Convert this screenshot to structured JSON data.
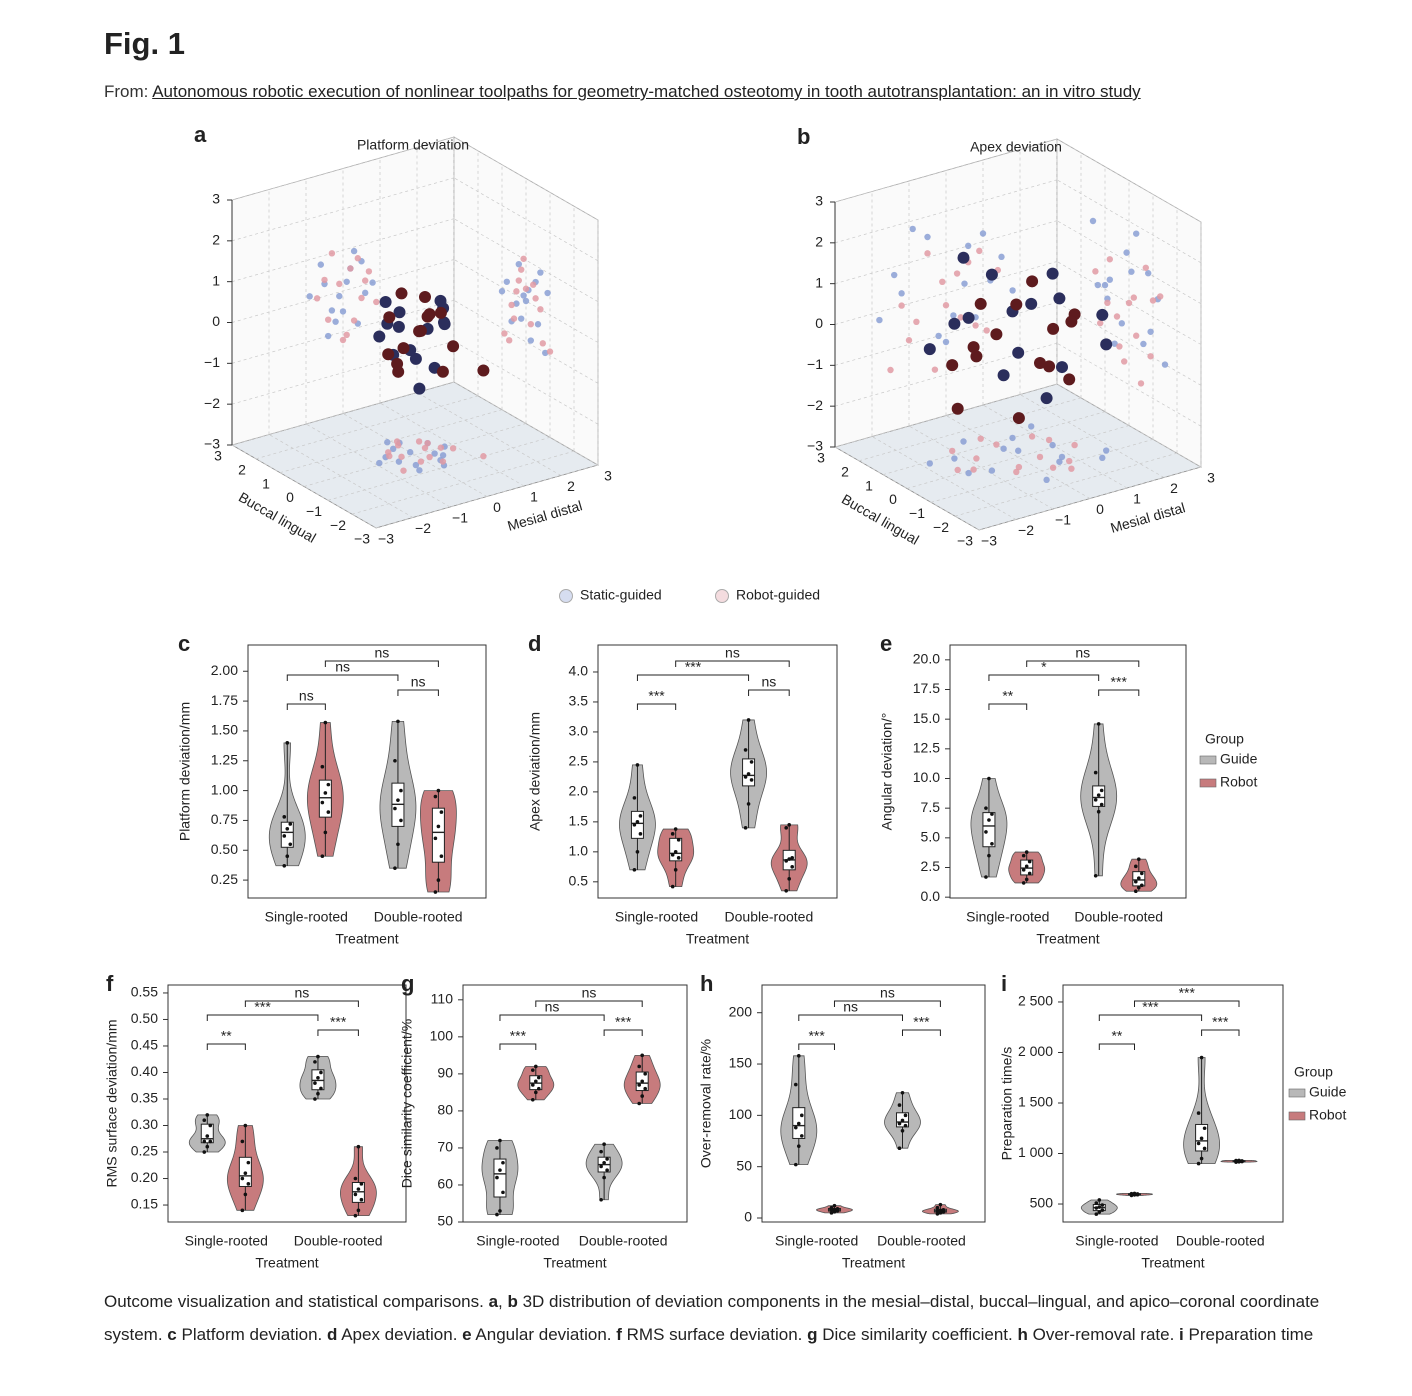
{
  "header": {
    "title": "Fig. 1",
    "from_label": "From:",
    "link": "Autonomous robotic execution of nonlinear toolpaths for geometry-matched osteotomy in tooth autotransplantation: an in vitro study"
  },
  "chart_data": [
    {
      "type": "scatter3d",
      "panel": "a",
      "title": "Platform deviation",
      "xlabel": "Mesial distal",
      "ylabel": "Buccal lingual",
      "xlim": [
        -3,
        3
      ],
      "ylim": [
        -3,
        3
      ],
      "zlim": [
        -3,
        3
      ],
      "xticks": [
        {
          "value": -3,
          "label": "−3"
        },
        {
          "value": -2,
          "label": "−2"
        },
        {
          "value": -1,
          "label": "−1"
        },
        0,
        1,
        2,
        3
      ],
      "yticks": [
        3,
        2,
        1,
        0,
        {
          "value": -1,
          "label": "−1"
        },
        {
          "value": -2,
          "label": "−2"
        },
        {
          "value": -3,
          "label": "−3"
        }
      ],
      "zticks": [
        3,
        2,
        1,
        0,
        {
          "value": -1,
          "label": "−1"
        },
        {
          "value": -2,
          "label": "−2"
        },
        {
          "value": -3,
          "label": "−3"
        }
      ],
      "series": [
        {
          "name": "Static-guided",
          "color": "#2b2e5c",
          "shadow_color": "#8a9fd3",
          "x": [
            -0.6,
            -0.3,
            0.1,
            0.4,
            -0.9,
            0.2,
            0.6,
            -0.2,
            0.3,
            -0.5,
            0.0,
            0.5,
            -0.1,
            0.8,
            -0.4
          ],
          "y": [
            0.3,
            -0.5,
            0.8,
            -0.2,
            0.1,
            -0.9,
            0.4,
            0.6,
            -0.6,
            -0.1,
            0.2,
            -0.4,
            1.0,
            0.0,
            -0.8
          ],
          "z": [
            0.8,
            -0.4,
            0.2,
            -0.9,
            0.1,
            0.5,
            -0.2,
            -0.7,
            0.9,
            0.3,
            -0.5,
            0.6,
            -0.1,
            0.0,
            -1.0
          ]
        },
        {
          "name": "Robot-guided",
          "color": "#5e1b1e",
          "shadow_color": "#e09aa3",
          "x": [
            0.2,
            -0.4,
            0.7,
            0.0,
            -0.7,
            0.4,
            1.2,
            -0.1,
            0.5,
            -0.3,
            0.9,
            0.1,
            -0.5,
            0.3,
            0.6
          ],
          "y": [
            -0.3,
            0.5,
            0.0,
            0.7,
            -0.6,
            0.2,
            -1.0,
            -0.4,
            0.6,
            0.1,
            -0.2,
            0.9,
            0.3,
            -0.7,
            0.4
          ],
          "z": [
            0.5,
            -0.6,
            0.3,
            -1.2,
            0.0,
            0.7,
            -0.9,
            0.2,
            -0.3,
            1.0,
            -0.5,
            -1.1,
            0.4,
            -0.8,
            0.1
          ]
        }
      ]
    },
    {
      "type": "scatter3d",
      "panel": "b",
      "title": "Apex deviation",
      "xlabel": "Mesial distal",
      "ylabel": "Buccal lingual",
      "xlim": [
        -3,
        3
      ],
      "ylim": [
        -3,
        3
      ],
      "zlim": [
        -3,
        3
      ],
      "xticks": [
        {
          "value": -3,
          "label": "−3"
        },
        {
          "value": -2,
          "label": "−2"
        },
        {
          "value": -1,
          "label": "−1"
        },
        0,
        1,
        2,
        3
      ],
      "yticks": [
        3,
        2,
        1,
        0,
        {
          "value": -1,
          "label": "−1"
        },
        {
          "value": -2,
          "label": "−2"
        },
        {
          "value": -3,
          "label": "−3"
        }
      ],
      "zticks": [
        3,
        2,
        1,
        0,
        {
          "value": -1,
          "label": "−1"
        },
        {
          "value": -2,
          "label": "−2"
        },
        {
          "value": -3,
          "label": "−3"
        }
      ],
      "series": [
        {
          "color": "#2b2e5c",
          "shadow_color": "#8a9fd3",
          "x": [
            -1.2,
            0.8,
            -0.5,
            1.5,
            0.2,
            -1.8,
            1.0,
            -0.2,
            0.5,
            -0.9,
            1.8,
            0.0,
            -1.4,
            1.2,
            0.6
          ],
          "y": [
            0.8,
            -0.6,
            1.5,
            -1.2,
            0.3,
            0.9,
            0.1,
            -1.5,
            1.0,
            -0.3,
            -0.9,
            0.6,
            -0.1,
            1.3,
            -0.8
          ],
          "z": [
            0.3,
            -0.8,
            1.5,
            0.5,
            -0.6,
            -0.2,
            1.2,
            -1.0,
            0.1,
            1.8,
            -0.4,
            -1.2,
            0.8,
            0.0,
            1.0
          ]
        },
        {
          "color": "#5e1b1e",
          "shadow_color": "#e09aa3",
          "x": [
            -0.8,
            0.3,
            -1.5,
            0.9,
            -0.3,
            1.4,
            -1.0,
            0.6,
            0.0,
            -0.5,
            1.1,
            -1.2,
            0.4,
            -0.1,
            0.8
          ],
          "y": [
            0.5,
            -1.0,
            0.2,
            0.8,
            -0.5,
            -0.2,
            1.2,
            -1.3,
            0.9,
            -0.7,
            0.4,
            0.0,
            -0.3,
            1.4,
            -0.9
          ],
          "z": [
            -0.5,
            0.4,
            -1.5,
            0.8,
            -1.8,
            0.2,
            -0.9,
            0.6,
            -0.3,
            1.1,
            -1.2,
            0.0,
            -0.7,
            0.3,
            -1.0
          ]
        }
      ]
    },
    {
      "type": "violin",
      "panel": "c",
      "ylabel": "Platform deviation/mm",
      "xlabel": "Treatment",
      "categories": [
        "Single-rooted",
        "Double-rooted"
      ],
      "ylim": [
        0.1,
        2.22
      ],
      "yticks": [
        0.25,
        {
          "value": 0.5,
          "label": "0.50"
        },
        0.75,
        {
          "value": 1,
          "label": "1.00"
        },
        1.25,
        {
          "value": 1.5,
          "label": "1.50"
        },
        1.75,
        {
          "value": 2,
          "label": "2.00"
        }
      ],
      "series": [
        {
          "color": "#b8b8b8",
          "values": [
            [
              0.37,
              0.45,
              0.55,
              0.62,
              0.68,
              0.72,
              0.78,
              1.4
            ],
            [
              0.35,
              0.55,
              0.75,
              0.85,
              0.92,
              1.0,
              1.25,
              1.58
            ]
          ]
        },
        {
          "color": "#c77b7d",
          "values": [
            [
              0.45,
              0.65,
              0.82,
              0.9,
              0.98,
              1.05,
              1.2,
              1.57
            ],
            [
              0.15,
              0.25,
              0.45,
              0.6,
              0.7,
              0.82,
              0.95,
              1.0
            ]
          ]
        }
      ],
      "brackets": [
        "ns",
        "ns",
        "ns",
        "ns"
      ]
    },
    {
      "type": "violin",
      "panel": "d",
      "ylabel": "Apex deviation/mm",
      "xlabel": "Treatment",
      "categories": [
        "Single-rooted",
        "Double-rooted"
      ],
      "ylim": [
        0.23,
        4.45
      ],
      "yticks": [
        0.5,
        {
          "value": 1,
          "label": "1.0"
        },
        1.5,
        {
          "value": 2,
          "label": "2.0"
        },
        2.5,
        {
          "value": 3,
          "label": "3.0"
        },
        3.5,
        {
          "value": 4,
          "label": "4.0"
        }
      ],
      "series": [
        {
          "color": "#b8b8b8",
          "values": [
            [
              0.7,
              1.0,
              1.3,
              1.45,
              1.5,
              1.6,
              1.9,
              2.45
            ],
            [
              1.4,
              1.8,
              2.2,
              2.25,
              2.3,
              2.5,
              2.7,
              3.2
            ]
          ]
        },
        {
          "color": "#c77b7d",
          "values": [
            [
              0.42,
              0.7,
              0.9,
              0.95,
              1.0,
              1.2,
              1.3,
              1.38
            ],
            [
              0.35,
              0.55,
              0.75,
              0.85,
              0.88,
              0.9,
              1.4,
              1.45
            ]
          ]
        }
      ],
      "brackets": [
        "ns",
        "***",
        "ns",
        "***"
      ]
    },
    {
      "type": "violin",
      "panel": "e",
      "ylabel": "Angular deviation/°",
      "xlabel": "Treatment",
      "categories": [
        "Single-rooted",
        "Double-rooted"
      ],
      "ylim": [
        -0.07,
        21.25
      ],
      "yticks": [
        {
          "value": 0,
          "label": "0.0"
        },
        2.5,
        {
          "value": 5,
          "label": "5.0"
        },
        7.5,
        {
          "value": 10,
          "label": "10.0"
        },
        12.5,
        {
          "value": 15,
          "label": "15.0"
        },
        17.5,
        {
          "value": 20,
          "label": "20.0"
        }
      ],
      "legend_title": "Group",
      "series": [
        {
          "name": "Guide",
          "color": "#b8b8b8",
          "values": [
            [
              1.7,
              3.5,
              4.5,
              5.5,
              6.5,
              7,
              7.5,
              10
            ],
            [
              1.8,
              7.2,
              7.8,
              8.2,
              8.6,
              9,
              10.5,
              14.6
            ]
          ]
        },
        {
          "name": "Robot",
          "color": "#c77b7d",
          "values": [
            [
              1.2,
              1.5,
              2,
              2.3,
              2.6,
              3,
              3.5,
              3.8
            ],
            [
              0.5,
              0.8,
              1,
              1.3,
              1.6,
              2,
              2.6,
              3.2
            ]
          ]
        }
      ],
      "brackets": [
        "ns",
        "*",
        "***",
        "**"
      ]
    },
    {
      "type": "violin",
      "panel": "f",
      "ylabel": "RMS surface deviation/mm",
      "xlabel": "Treatment",
      "categories": [
        "Single-rooted",
        "Double-rooted"
      ],
      "ylim": [
        0.118,
        0.565
      ],
      "yticks": [
        0.15,
        {
          "value": 0.2,
          "label": "0.20"
        },
        0.25,
        {
          "value": 0.3,
          "label": "0.30"
        },
        0.35,
        {
          "value": 0.4,
          "label": "0.40"
        },
        0.45,
        {
          "value": 0.5,
          "label": "0.50"
        },
        0.55
      ],
      "series": [
        {
          "color": "#b8b8b8",
          "values": [
            [
              0.25,
              0.26,
              0.27,
              0.27,
              0.28,
              0.3,
              0.31,
              0.32
            ],
            [
              0.35,
              0.36,
              0.37,
              0.38,
              0.39,
              0.4,
              0.42,
              0.43
            ]
          ]
        },
        {
          "color": "#c77b7d",
          "values": [
            [
              0.14,
              0.17,
              0.19,
              0.2,
              0.21,
              0.23,
              0.27,
              0.3
            ],
            [
              0.13,
              0.14,
              0.16,
              0.17,
              0.18,
              0.19,
              0.2,
              0.26
            ]
          ]
        }
      ],
      "brackets": [
        "ns",
        "***",
        "***",
        "**"
      ]
    },
    {
      "type": "violin",
      "panel": "g",
      "ylabel": "Dice similarity coefficient/%",
      "xlabel": "Treatment",
      "categories": [
        "Single-rooted",
        "Double-rooted"
      ],
      "ylim": [
        50,
        114
      ],
      "yticks": [
        50,
        60,
        70,
        80,
        90,
        100,
        110
      ],
      "series": [
        {
          "color": "#b8b8b8",
          "values": [
            [
              52,
              53,
              58,
              62,
              64,
              66,
              70,
              72
            ],
            [
              56,
              62,
              64,
              65,
              66,
              67,
              69,
              71
            ]
          ]
        },
        {
          "color": "#c77b7d",
          "values": [
            [
              83,
              85,
              86,
              87,
              88,
              89,
              91,
              92
            ],
            [
              82,
              84,
              86,
              87,
              88,
              90,
              92,
              95
            ]
          ]
        }
      ],
      "brackets": [
        "ns",
        "ns",
        "***",
        "***"
      ]
    },
    {
      "type": "violin",
      "panel": "h",
      "ylabel": "Over-removal rate/%",
      "xlabel": "Treatment",
      "categories": [
        "Single-rooted",
        "Double-rooted"
      ],
      "ylim": [
        -3.9,
        227
      ],
      "yticks": [
        0,
        50,
        100,
        150,
        200
      ],
      "series": [
        {
          "color": "#b8b8b8",
          "values": [
            [
              52,
              70,
              80,
              88,
              92,
              100,
              130,
              158
            ],
            [
              68,
              85,
              90,
              92,
              95,
              100,
              110,
              122
            ]
          ]
        },
        {
          "color": "#c77b7d",
          "values": [
            [
              5,
              6,
              7,
              8,
              8,
              9,
              10,
              12
            ],
            [
              4,
              5,
              6,
              7,
              7,
              8,
              10,
              13
            ]
          ]
        }
      ],
      "brackets": [
        "ns",
        "ns",
        "***",
        "***"
      ]
    },
    {
      "type": "violin",
      "panel": "i",
      "ylabel": "Preparation time/s",
      "xlabel": "Treatment",
      "categories": [
        "Single-rooted",
        "Double-rooted"
      ],
      "ylim": [
        322,
        2668
      ],
      "yticks": [
        500,
        {
          "value": 1000,
          "label": "1 000"
        },
        {
          "value": 1500,
          "label": "1 500"
        },
        {
          "value": 2000,
          "label": "2 000"
        },
        {
          "value": 2500,
          "label": "2 500"
        }
      ],
      "legend_title": "Group",
      "series": [
        {
          "name": "Guide",
          "color": "#b8b8b8",
          "values": [
            [
              400,
              420,
              440,
              460,
              470,
              490,
              510,
              540
            ],
            [
              900,
              950,
              1050,
              1100,
              1150,
              1250,
              1400,
              1950
            ]
          ]
        },
        {
          "name": "Robot",
          "color": "#c77b7d",
          "values": [
            [
              585,
              590,
              592,
              595,
              597,
              600,
              602,
              605
            ],
            [
              915,
              918,
              920,
              922,
              925,
              927,
              930,
              932
            ]
          ]
        }
      ],
      "brackets": [
        "***",
        "***",
        "***",
        "**"
      ]
    }
  ],
  "caption": [
    "Outcome visualization and statistical comparisons. ",
    "a",
    ", ",
    "b",
    " 3D distribution of deviation components in the mesial–distal, buccal–lingual, and apico–coronal coordinate system. ",
    "c",
    " Platform deviation. ",
    "d",
    " Apex deviation. ",
    "e",
    " Angular deviation. ",
    "f",
    " RMS surface deviation. ",
    "g",
    " Dice similarity coefficient. ",
    "h",
    " Over-removal rate. ",
    "i",
    " Preparation time"
  ]
}
